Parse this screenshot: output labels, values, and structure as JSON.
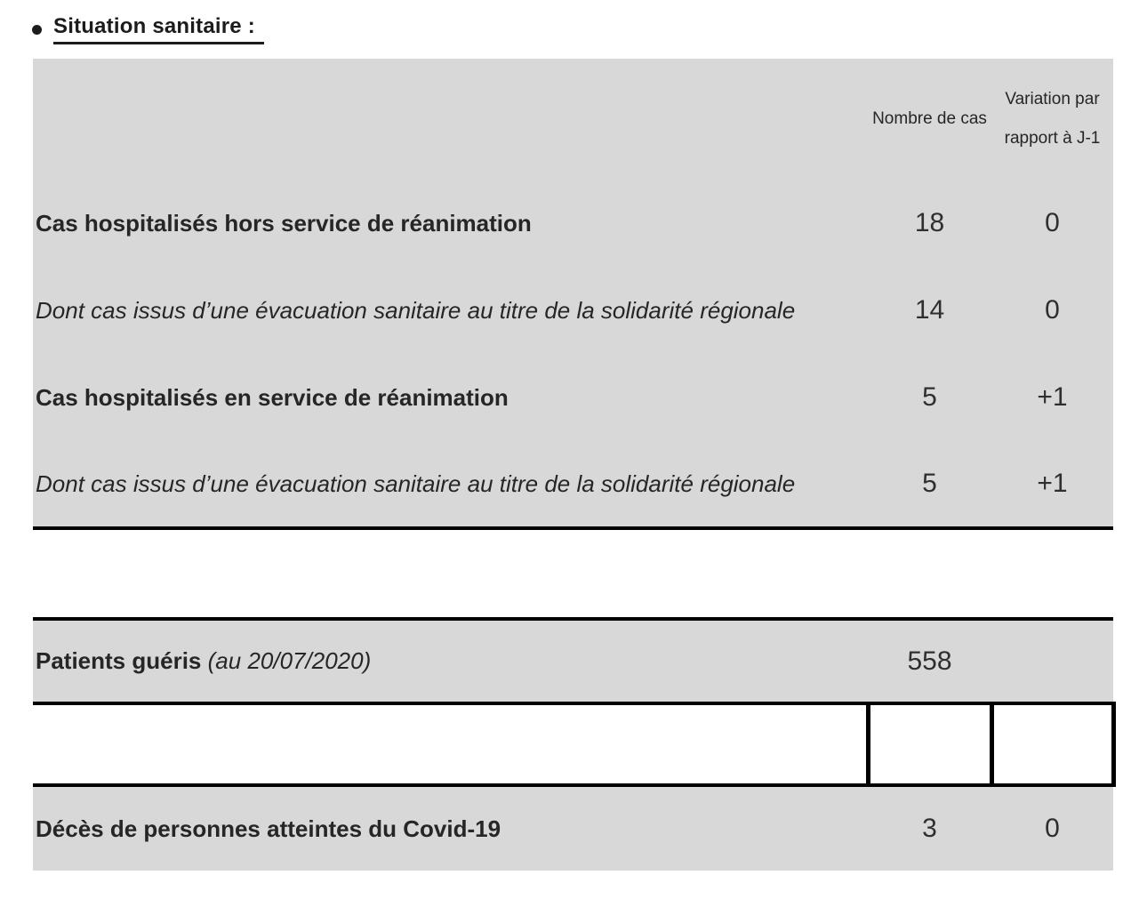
{
  "title": "Situation sanitaire :",
  "table1": {
    "headers": {
      "cases": "Nombre de cas",
      "variation_line1": "Variation par",
      "variation_line2": "rapport à J-1"
    },
    "rows": [
      {
        "label": "Cas hospitalisés hors service de réanimation",
        "style": "bold",
        "cases": "18",
        "variation": "0"
      },
      {
        "label": "Dont cas issus d’une évacuation sanitaire au titre de la solidarité régionale",
        "style": "italic",
        "cases": "14",
        "variation": "0"
      },
      {
        "label": "Cas hospitalisés en service de réanimation",
        "style": "bold",
        "cases": "5",
        "variation": "+1"
      },
      {
        "label": "Dont cas issus d’une évacuation sanitaire au titre de la solidarité régionale",
        "style": "italic",
        "cases": "5",
        "variation": "+1"
      }
    ]
  },
  "table2": {
    "recovered": {
      "label_bold": "Patients guéris",
      "label_italic": "(au 20/07/2020)",
      "cases": "558"
    },
    "deaths": {
      "label": "Décès de personnes atteintes du Covid-19",
      "cases": "3",
      "variation": "0"
    }
  },
  "colors": {
    "table_background": "#d8d8d8",
    "rule_line": "#000000",
    "text": "#262626"
  }
}
